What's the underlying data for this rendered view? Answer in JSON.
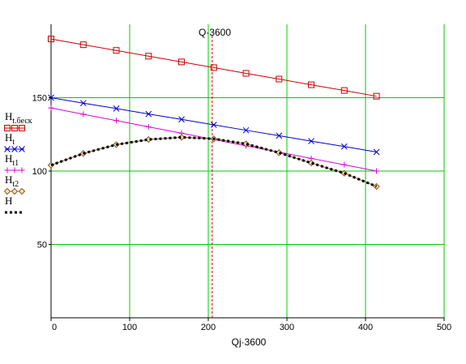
{
  "chart_data": {
    "type": "line",
    "xlabel": "Qj·3600",
    "marker_label": "Q·3600",
    "marker_x": 205,
    "xlim": [
      0,
      500
    ],
    "ylim": [
      0,
      200
    ],
    "xticks": [
      "0",
      "100",
      "200",
      "300",
      "400",
      "500"
    ],
    "yticks": [
      "50",
      "100",
      "150"
    ],
    "xtick_values": [
      0,
      100,
      200,
      300,
      400,
      500
    ],
    "ytick_values": [
      50,
      100,
      150
    ],
    "grid": true,
    "grid_color": "#00cc00",
    "marker_color": "#cc0000",
    "legend_position": "left",
    "series": [
      {
        "name_main": "H",
        "name_sub": "t.беск",
        "color": "#cc0000",
        "marker": "square",
        "line_style": "solid",
        "x": [
          0,
          41,
          83,
          124,
          166,
          207,
          248,
          290,
          331,
          373,
          414
        ],
        "y": [
          190,
          186.1,
          182.2,
          178.3,
          174.4,
          170.5,
          166.6,
          162.7,
          158.8,
          154.9,
          151
        ]
      },
      {
        "name_main": "H",
        "name_sub": "t",
        "color": "#0000cc",
        "marker": "x",
        "line_style": "solid",
        "x": [
          0,
          41,
          83,
          124,
          166,
          207,
          248,
          290,
          331,
          373,
          414
        ],
        "y": [
          150,
          146.3,
          142.6,
          138.9,
          135.2,
          131.5,
          127.8,
          124.1,
          120.4,
          116.7,
          113
        ]
      },
      {
        "name_main": "H",
        "name_sub": "t1",
        "color": "#dd00dd",
        "marker": "plus",
        "line_style": "solid",
        "x": [
          0,
          41,
          83,
          124,
          166,
          207,
          248,
          290,
          331,
          373,
          414
        ],
        "y": [
          143,
          138.7,
          134.4,
          130.1,
          125.8,
          121.5,
          117.2,
          112.9,
          108.6,
          104.3,
          100
        ]
      },
      {
        "name_main": "H",
        "name_sub": "t2",
        "color": "#8b5a2b",
        "marker": "diamond",
        "line_style": "solid",
        "x": [
          0,
          41,
          83,
          124,
          166,
          207,
          248,
          290,
          331,
          373,
          414
        ],
        "y": [
          104,
          112,
          118,
          121.5,
          123,
          122,
          118.5,
          112.5,
          105.5,
          98.5,
          89.5
        ]
      },
      {
        "name_main": "H",
        "name_sub": "",
        "color": "#000000",
        "marker": "none",
        "line_style": "dotted",
        "x": [
          0,
          41,
          83,
          124,
          166,
          207,
          248,
          290,
          331,
          373,
          414
        ],
        "y": [
          104,
          112,
          118,
          121.5,
          123,
          122,
          118.5,
          112.5,
          105.5,
          98.5,
          89.5
        ]
      }
    ]
  }
}
